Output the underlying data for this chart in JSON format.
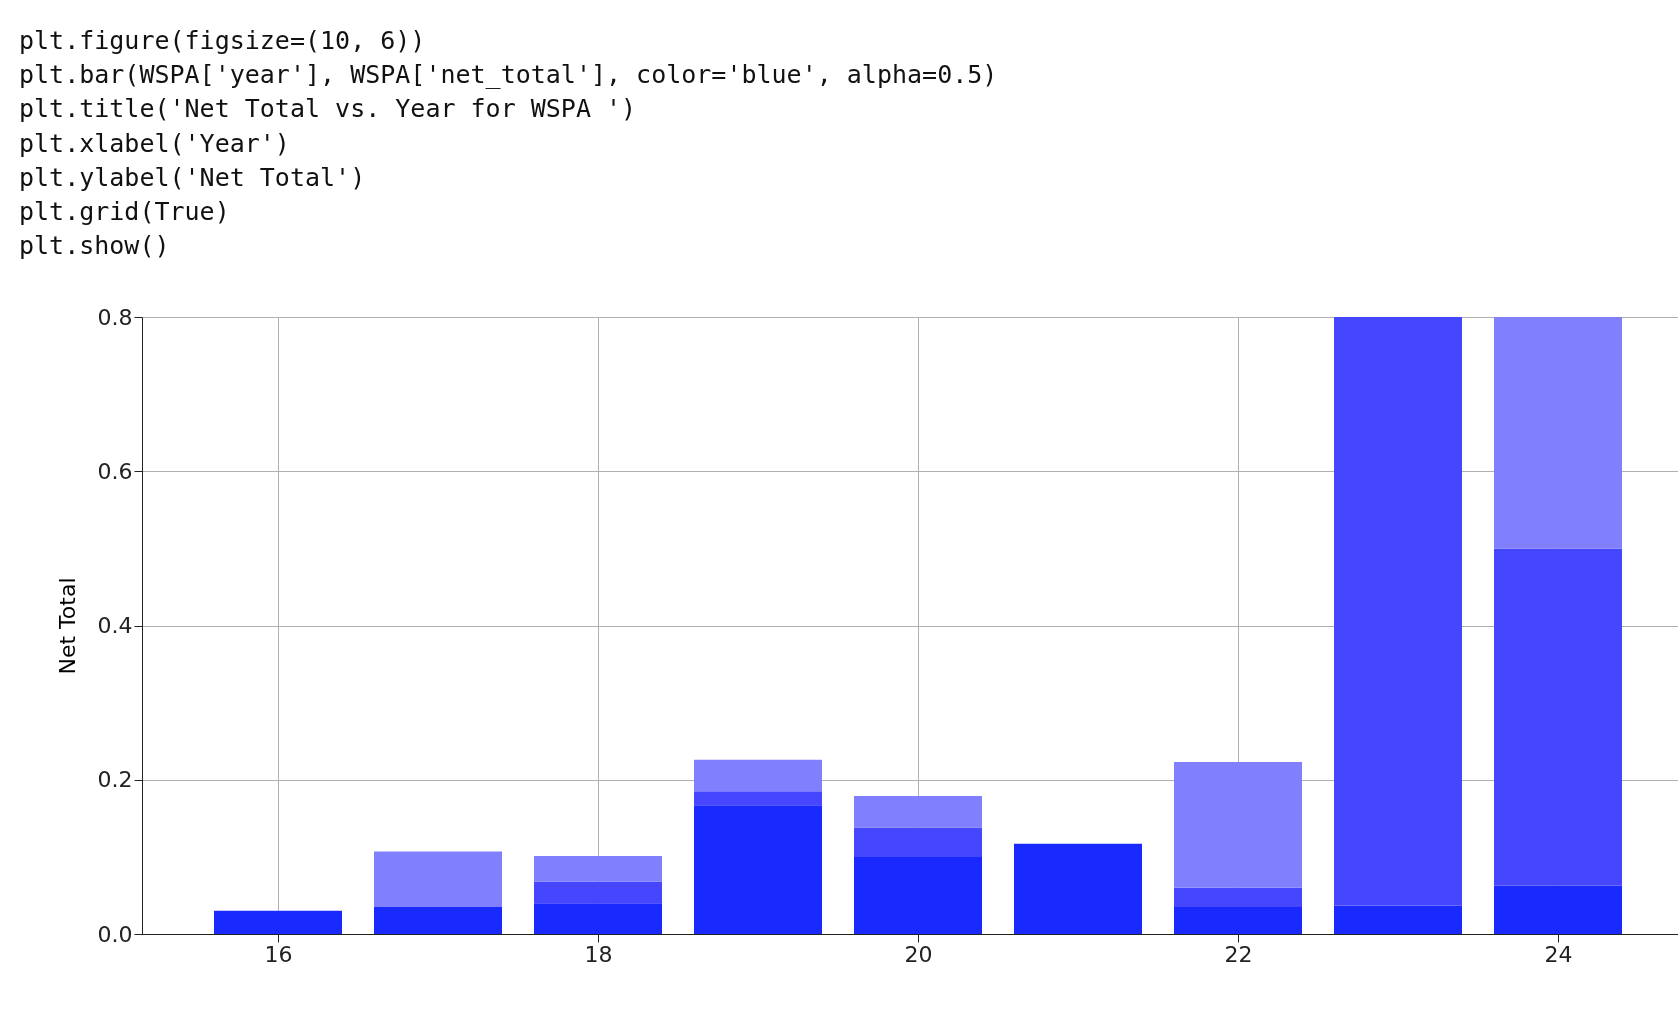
{
  "chart_data": {
    "type": "bar",
    "ylabel": "Net Total",
    "x": [
      16,
      17,
      18,
      19,
      20,
      21,
      22,
      23,
      24
    ],
    "series": [
      {
        "color": "#1a2aff",
        "values": [
          0.03,
          0.035,
          0.04,
          0.167,
          0.1,
          0.117,
          0.035,
          0.037,
          0.063
        ]
      },
      {
        "color": "#4646ff",
        "values": [
          null,
          null,
          0.028,
          0.018,
          0.038,
          null,
          0.025,
          0.763,
          0.437
        ]
      },
      {
        "color": "#8080ff",
        "values": [
          null,
          0.072,
          0.033,
          0.041,
          0.041,
          null,
          0.163,
          null,
          0.3
        ]
      }
    ],
    "stacked": true,
    "xlim": [
      15.15,
      24.75
    ],
    "xticks": [
      16,
      18,
      20,
      22,
      24
    ],
    "ylim": [
      0,
      0.8
    ],
    "yticks": [
      {
        "value": 0,
        "label": "0.0"
      },
      {
        "value": 0.2,
        "label": "0.2"
      },
      {
        "value": 0.4,
        "label": "0.4"
      },
      {
        "value": 0.6,
        "label": "0.6"
      },
      {
        "value": 0.8,
        "label": "0.8"
      }
    ],
    "grid": true,
    "annotations": [
      "plt.figure(figsize=(10, 6))",
      "plt.bar(WSPA['year'], WSPA['net_total'], color='blue', alpha=0.5)",
      "plt.title('Net Total vs. Year for WSPA ')",
      "plt.xlabel('Year')",
      "plt.ylabel('Net Total')",
      "plt.grid(True)",
      "plt.show()"
    ]
  }
}
